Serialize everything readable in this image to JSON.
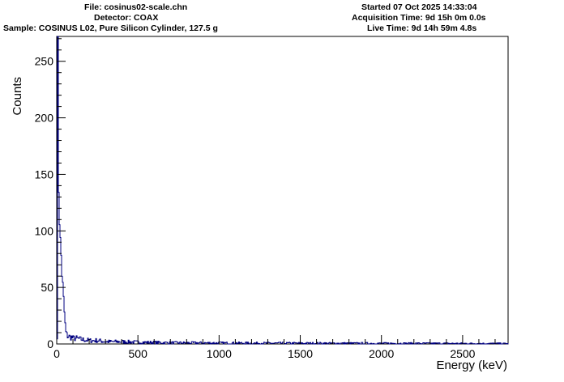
{
  "header": {
    "file": "File: cosinus02-scale.chn",
    "detector": "Detector: COAX",
    "sample": "Sample: COSINUS L02, Pure Silicon Cylinder, 127.5 g",
    "started": "Started 07 Oct 2025 14:33:04",
    "acquisition_time": "Acquisition Time: 9d 15h 0m 0.0s",
    "live_time": "Live Time: 9d 14h 59m 4.8s"
  },
  "chart_data": {
    "type": "histogram",
    "title": "",
    "xlabel": "Energy (keV)",
    "ylabel": "Counts",
    "xlim": [
      0,
      2780
    ],
    "ylim": [
      0,
      272
    ],
    "x_ticks": [
      0,
      500,
      1000,
      1500,
      2000,
      2500
    ],
    "y_ticks": [
      0,
      50,
      100,
      150,
      200,
      250
    ],
    "x_tick_labels": [
      "0",
      "500",
      "1000",
      "1500",
      "2000",
      "2500"
    ],
    "y_tick_labels": [
      "0",
      "50",
      "100",
      "150",
      "200",
      "250"
    ],
    "bin_width_keV": 5,
    "color": "#000080",
    "grid": false,
    "legend": "none",
    "series": [
      {
        "x_keV": [
          0,
          5,
          10,
          15,
          20,
          25,
          30,
          35,
          40,
          45,
          50,
          55,
          60,
          65,
          70,
          80,
          90,
          100,
          120,
          150,
          200,
          250,
          300,
          400,
          500,
          700,
          1000,
          1500,
          2000,
          2500,
          2780
        ],
        "counts": [
          5,
          260,
          140,
          112,
          90,
          78,
          62,
          52,
          40,
          28,
          18,
          10,
          8,
          7,
          7,
          6,
          6,
          5,
          5,
          4,
          3,
          3,
          2,
          2,
          1.5,
          1,
          0.8,
          0.6,
          0.5,
          0.4,
          0.3
        ]
      }
    ]
  }
}
